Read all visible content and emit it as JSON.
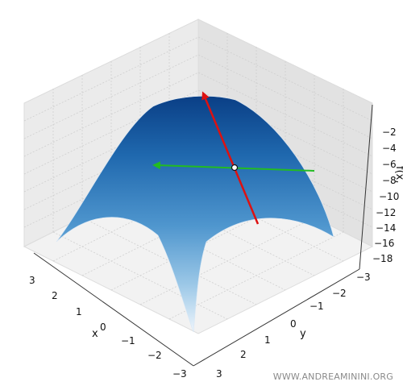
{
  "chart_data": {
    "type": "surface3d",
    "surface": {
      "function": "f(x,y) = -x^2 - y^2",
      "x_range": [
        -3,
        3
      ],
      "y_range": [
        -3,
        3
      ],
      "colormap": "Blues"
    },
    "axes": {
      "x": {
        "label": "x",
        "ticks": [
          "3",
          "2",
          "1",
          "0",
          "−1",
          "−2",
          "−3"
        ]
      },
      "y": {
        "label": "y",
        "ticks": [
          "−3",
          "−2",
          "−1",
          "0",
          "1",
          "2",
          "3"
        ]
      },
      "z": {
        "label": "f(x,",
        "ticks": [
          "−2",
          "−4",
          "−6",
          "−8",
          "−10",
          "−12",
          "−14",
          "−16",
          "−18"
        ]
      }
    },
    "point": {
      "x": 0.5,
      "y": -0.5,
      "z": -0.5,
      "fill": "#ffffff"
    },
    "vectors": [
      {
        "name": "gradient",
        "color": "#dd1111"
      },
      {
        "name": "tangent",
        "color": "#22bb22"
      }
    ]
  },
  "watermark": "WWW.ANDREAMININI.ORG"
}
